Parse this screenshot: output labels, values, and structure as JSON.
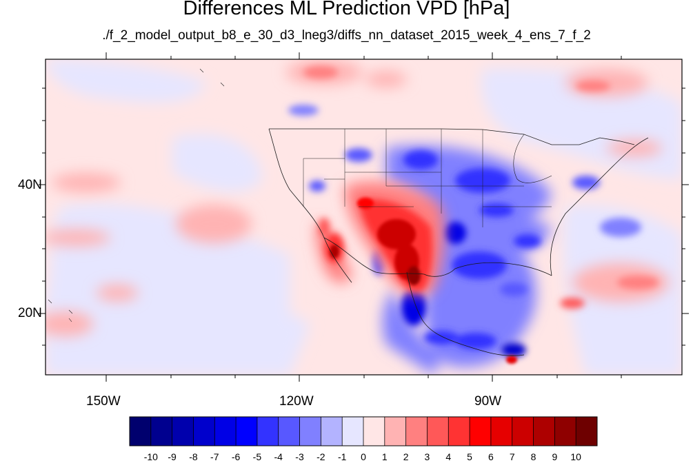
{
  "title": "Differences ML Prediction VPD [hPa]",
  "subtitle": "./f_2_model_output_b8_e_30_d3_lneg3/diffs_nn_dataset_2015_week_4_ens_7_f_2",
  "axes": {
    "lat_labels": [
      "40N",
      "20N"
    ],
    "lon_labels": [
      "150W",
      "120W",
      "90W"
    ],
    "lon_range": [
      -159.5,
      -60
    ],
    "lat_range": [
      10,
      59.5
    ]
  },
  "colorbar": {
    "labels": [
      "-10",
      "-9",
      "-8",
      "-7",
      "-6",
      "-5",
      "-4",
      "-3",
      "-2",
      "-1",
      "0",
      "1",
      "2",
      "3",
      "4",
      "5",
      "6",
      "7",
      "8",
      "9",
      "10"
    ],
    "colors": [
      "#00006e",
      "#00008f",
      "#0000ad",
      "#0000cc",
      "#0000e6",
      "#0000ff",
      "#3333ff",
      "#5858ff",
      "#8080ff",
      "#b3b3ff",
      "#e6e6ff",
      "#ffe6e6",
      "#ffb3b3",
      "#ff8080",
      "#ff5858",
      "#ff3333",
      "#ff0000",
      "#e60000",
      "#cc0000",
      "#ad0000",
      "#8f0000",
      "#6e0000"
    ]
  }
}
